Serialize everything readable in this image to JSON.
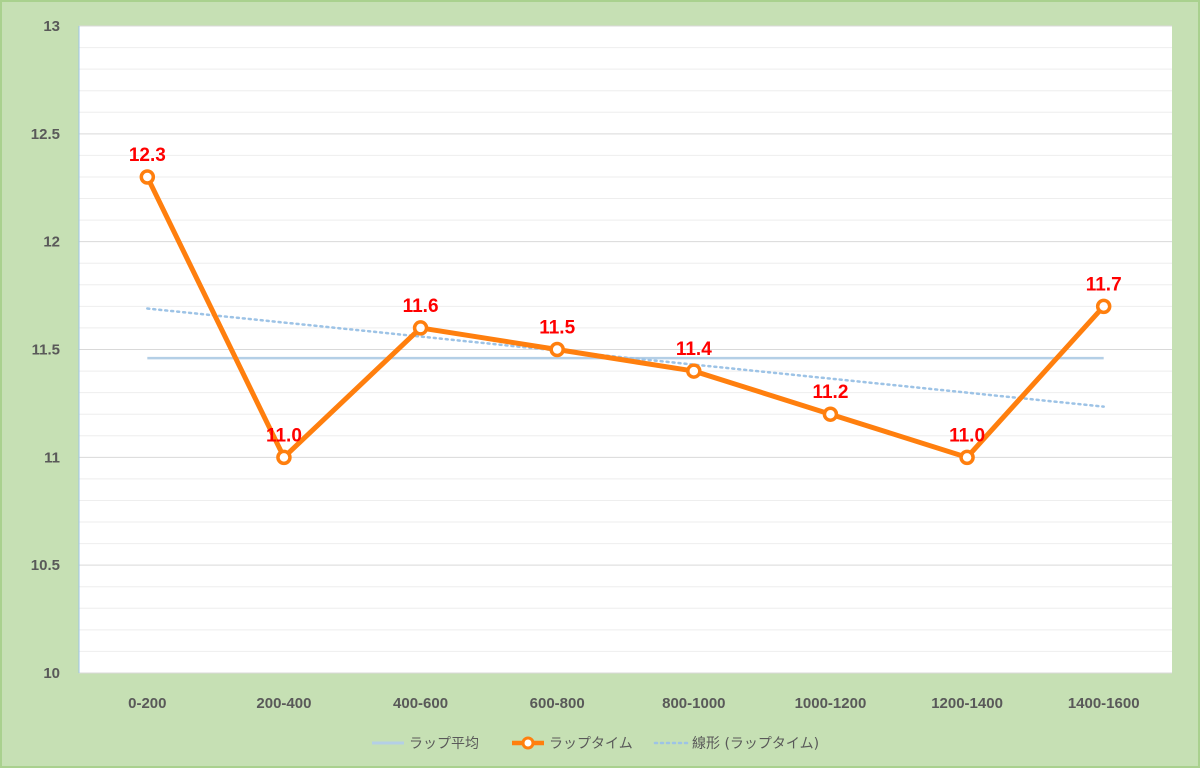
{
  "chart_data": {
    "type": "line",
    "categories": [
      "0-200",
      "200-400",
      "400-600",
      "600-800",
      "800-1000",
      "1000-1200",
      "1200-1400",
      "1400-1600"
    ],
    "ylim": [
      10,
      13
    ],
    "yticks": [
      "10",
      "10.5",
      "11",
      "11.5",
      "12",
      "12.5",
      "13"
    ],
    "grid": true,
    "legend_position": "bottom",
    "series": [
      {
        "name": "ラップ平均",
        "kind": "average-line",
        "values": [
          11.46,
          11.46,
          11.46,
          11.46,
          11.46,
          11.46,
          11.46,
          11.46
        ],
        "color": "#b4cfe6"
      },
      {
        "name": "ラップタイム",
        "kind": "line-markers",
        "values": [
          12.3,
          11.0,
          11.6,
          11.5,
          11.4,
          11.2,
          11.0,
          11.7
        ],
        "labels": [
          "12.3",
          "11.0",
          "11.6",
          "11.5",
          "11.4",
          "11.2",
          "11.0",
          "11.7"
        ],
        "color": "#ff7f0e"
      },
      {
        "name": "線形 (ラップタイム)",
        "kind": "trendline",
        "values": [
          11.69,
          11.625,
          11.56,
          11.495,
          11.43,
          11.365,
          11.3,
          11.235
        ],
        "color": "#9dc3e6"
      }
    ],
    "colors": {
      "label": "#ff0000",
      "tick": "#595959",
      "grid_major": "#d9d9d9",
      "grid_minor": "#eeeeee",
      "axis": "#9dc3e6",
      "plot_bg": "#ffffff",
      "page_bg": "#c6e0b4"
    }
  }
}
